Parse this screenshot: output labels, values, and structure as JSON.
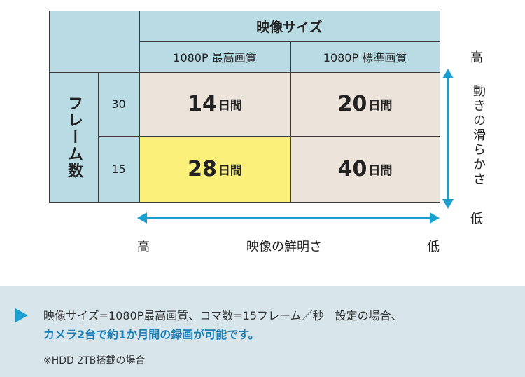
{
  "table": {
    "header_main": "映像サイズ",
    "col1": "1080P 最高画質",
    "col2": "1080P 標準画質",
    "row_header": "フレーム数",
    "rows": [
      {
        "fps": "30",
        "c1_num": "14",
        "c1_unit": "日間",
        "c2_num": "20",
        "c2_unit": "日間"
      },
      {
        "fps": "15",
        "c1_num": "28",
        "c1_unit": "日間",
        "c2_num": "40",
        "c2_unit": "日間"
      }
    ]
  },
  "vertical_axis": {
    "top": "高",
    "label": "動きの滑らかさ",
    "bottom": "低"
  },
  "horizontal_axis": {
    "left": "高",
    "label": "映像の鮮明さ",
    "right": "低"
  },
  "colors": {
    "accent": "#1b9fd0",
    "header_bg": "#b9dbe3",
    "cell_bg": "#ece4da",
    "highlight_bg": "#fbf07a",
    "note_bg": "#d8e6eb"
  },
  "note": {
    "line1": "映像サイズ=1080P最高画質、コマ数=15フレーム／秒　設定の場合、",
    "line2": "カメラ2台で約1か月間の録画が可能です。",
    "line3": "※HDD 2TB搭載の場合"
  }
}
